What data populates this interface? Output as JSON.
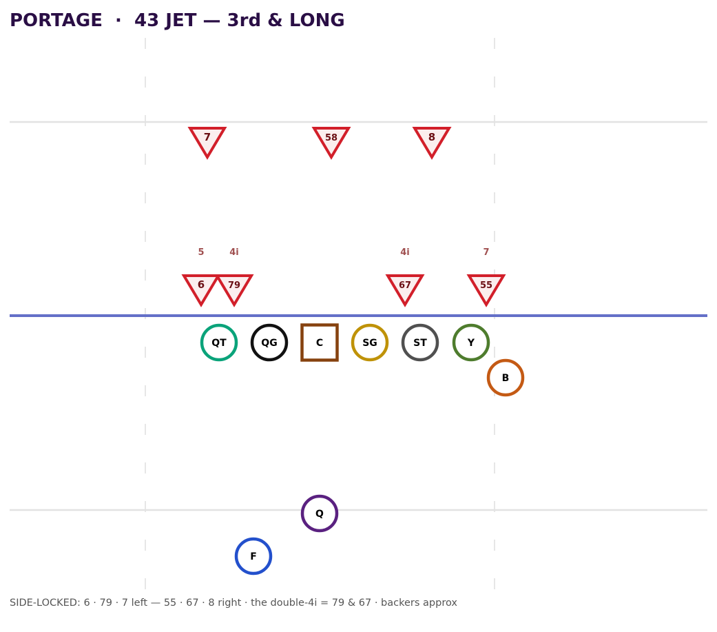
{
  "title": "PORTAGE  ·  43 JET — 3rd & LONG",
  "footer": "SIDE-LOCKED: 6 · 79 · 7 left — 55 · 67 · 8 right · the double-4i = 79 & 67 · backers approx",
  "colors": {
    "scrimmage_line": "#6470c8",
    "defender_stroke": "#d21f2a",
    "defender_fill": "#fbeeee",
    "yard_line": "#e2e2e2",
    "hash": "#e6e6e6"
  },
  "offense": [
    {
      "label": "QT",
      "shape": "circle",
      "color": "#0aa37a"
    },
    {
      "label": "QG",
      "shape": "circle",
      "color": "#111111"
    },
    {
      "label": "C",
      "shape": "square",
      "color": "#86420f"
    },
    {
      "label": "SG",
      "shape": "circle",
      "color": "#bf9208"
    },
    {
      "label": "ST",
      "shape": "circle",
      "color": "#505050"
    },
    {
      "label": "Y",
      "shape": "circle",
      "color": "#4e7c2d"
    },
    {
      "label": "B",
      "shape": "circle",
      "color": "#c45a14"
    },
    {
      "label": "Q",
      "shape": "circle",
      "color": "#5a2180"
    },
    {
      "label": "F",
      "shape": "circle",
      "color": "#2350cc"
    }
  ],
  "defense": [
    {
      "label": "7"
    },
    {
      "label": "58"
    },
    {
      "label": "8"
    },
    {
      "label": "6",
      "technique": "5"
    },
    {
      "label": "79",
      "technique": "4i"
    },
    {
      "label": "67",
      "technique": "4i"
    },
    {
      "label": "55",
      "technique": "7"
    }
  ]
}
